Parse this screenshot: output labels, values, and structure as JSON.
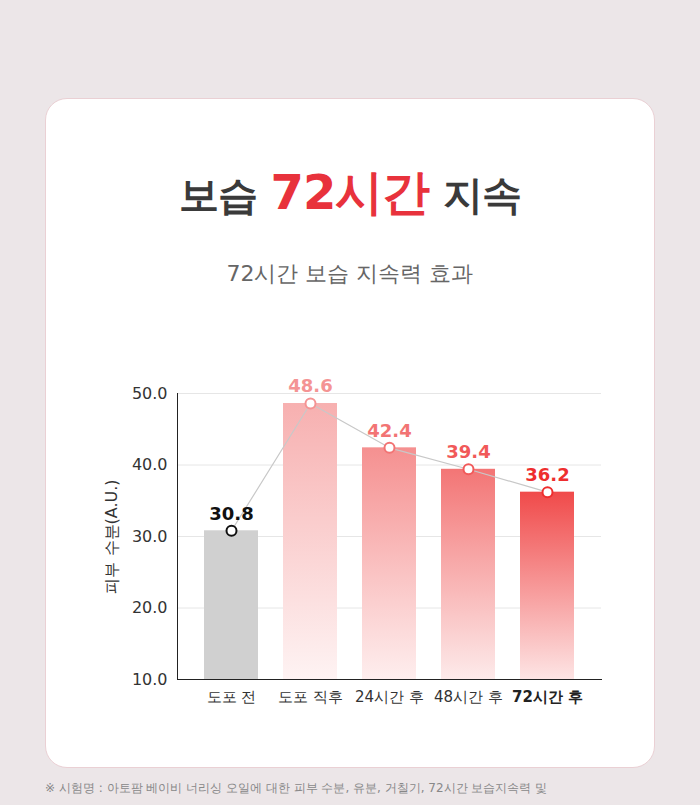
{
  "chart_data": {
    "type": "bar",
    "title": "보습 72시간 지속",
    "subtitle": "72시간 보습 지속력 효과",
    "y_label": "피부 수분(A.U.)",
    "categories": [
      "도포 전",
      "도포 직후",
      "24시간 후",
      "48시간 후",
      "72시간 후"
    ],
    "values": [
      30.8,
      48.6,
      42.4,
      39.4,
      36.2
    ],
    "colors": [
      "#d0d0d0",
      "#f7b0b0",
      "#f59090",
      "#f37575",
      "#f04a4a"
    ],
    "ylim": [
      10,
      50
    ],
    "yticks": [
      {
        "value": 10,
        "label": "10.0"
      },
      {
        "value": 20,
        "label": "20.0"
      },
      {
        "value": 30,
        "label": "30.0"
      },
      {
        "value": 40,
        "label": "40.0"
      },
      {
        "value": 50,
        "label": "50.0"
      }
    ],
    "grid": true,
    "data_labels": true,
    "marker": "circle",
    "note": "※ 시험명 : 아토팜 베이비 너리싱 오일에 대한 피부 수분, 유분, 거칠기, 72시간 보습지속력 및"
  }
}
